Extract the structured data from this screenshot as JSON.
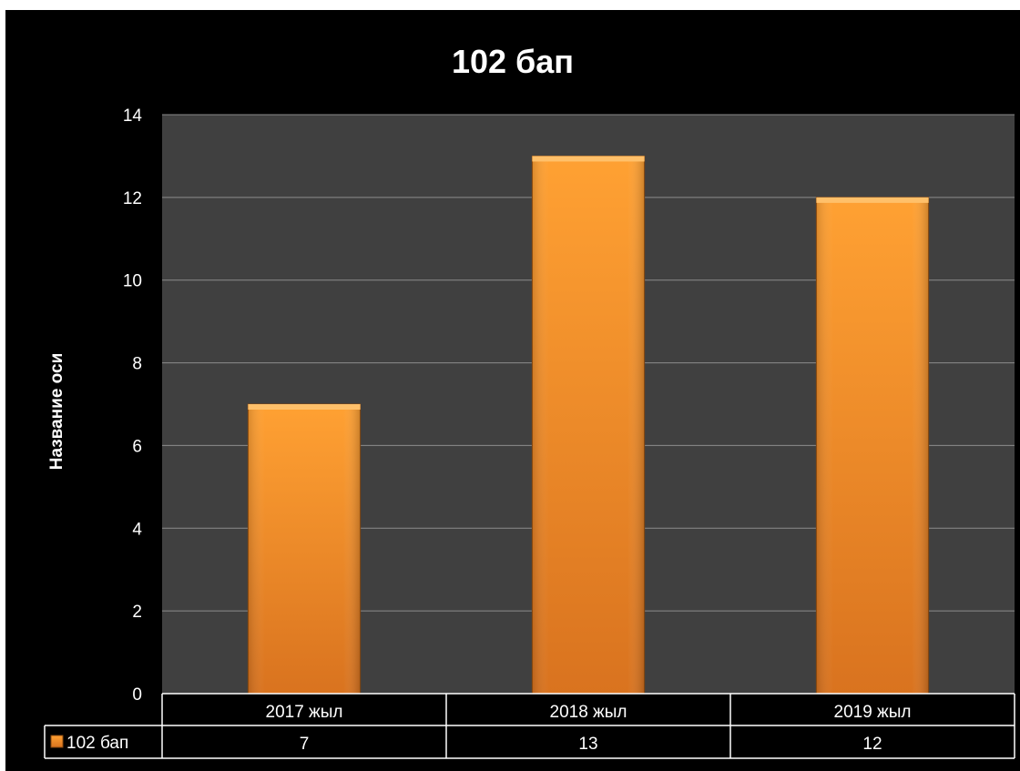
{
  "chart_data": {
    "type": "bar",
    "title": "102 бап",
    "xlabel": "",
    "ylabel": "Название оси",
    "categories": [
      "2017 жыл",
      "2018 жыл",
      "2019 жыл"
    ],
    "series": [
      {
        "name": "102 бап",
        "values": [
          7,
          13,
          12
        ]
      }
    ],
    "ylim": [
      0,
      14
    ],
    "yticks": [
      0,
      2,
      4,
      6,
      8,
      10,
      12,
      14
    ],
    "grid": true,
    "legend": "data-table",
    "data_table": true,
    "colors": {
      "background": "#000000",
      "plot_area": "#404040",
      "gridline": "#8c8c8c",
      "bar_top": "#ffa133",
      "bar_bottom": "#d9731f",
      "text": "#ffffff"
    }
  }
}
